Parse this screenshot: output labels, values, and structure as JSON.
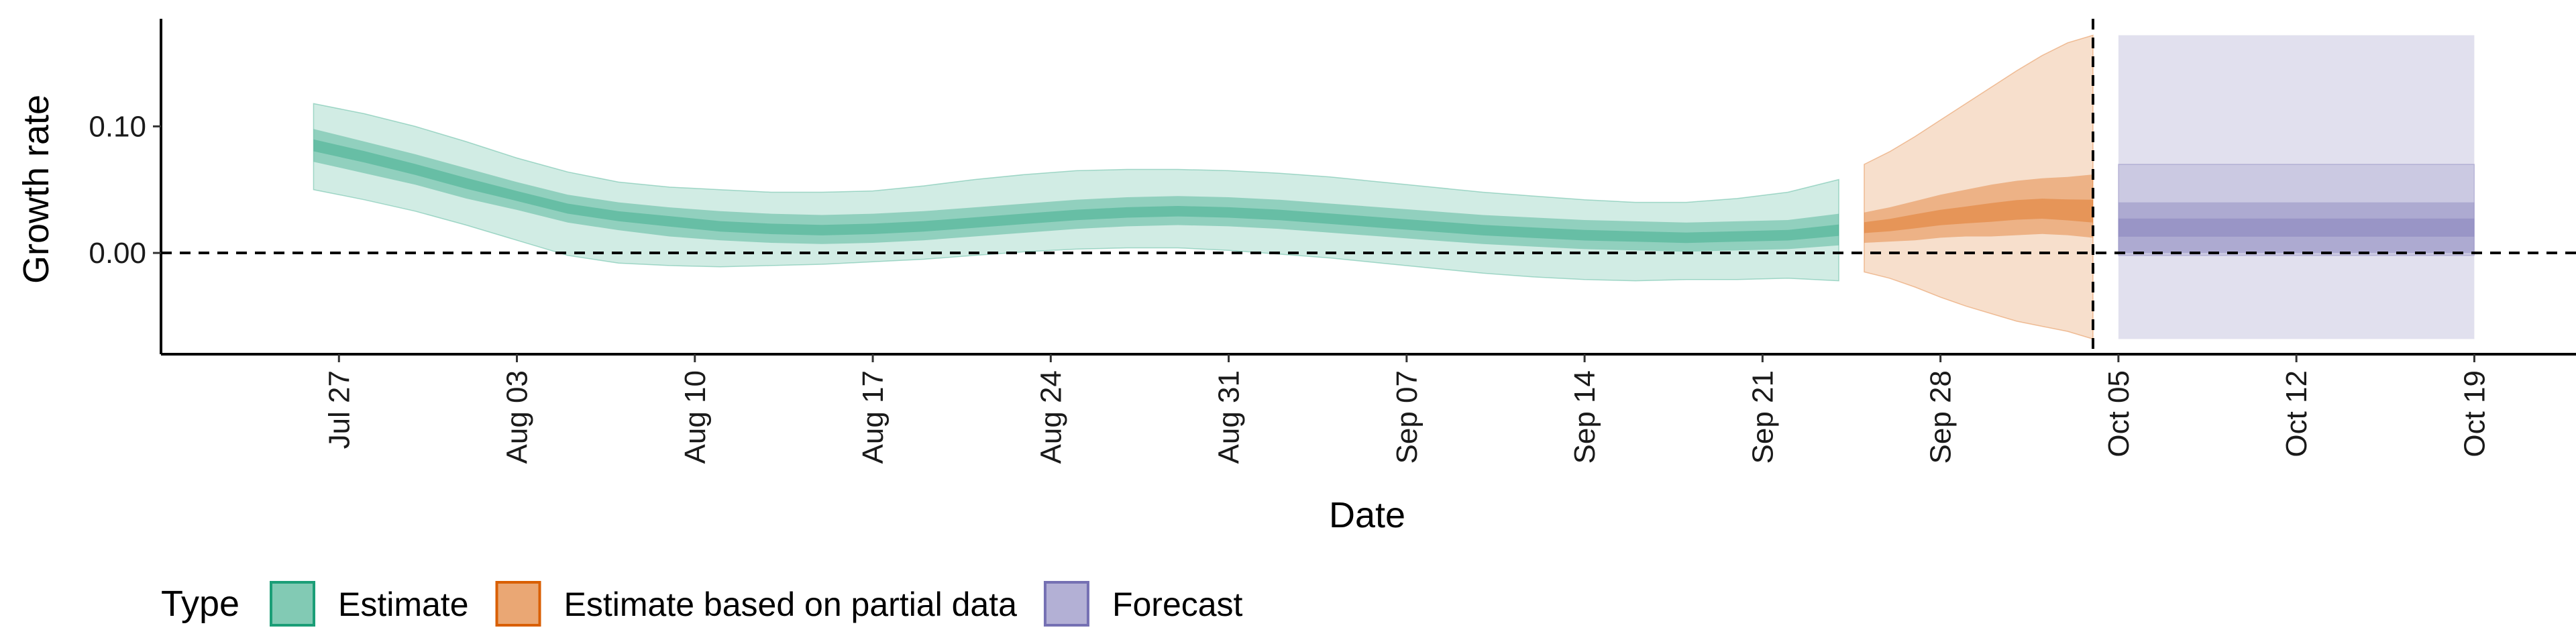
{
  "chart_data": {
    "type": "area",
    "title": "",
    "xlabel": "Date",
    "ylabel": "Growth rate",
    "xlim": [
      "2020-07-20",
      "2020-10-23"
    ],
    "ylim": [
      -0.08,
      0.185
    ],
    "x_ticks": [
      "2020-07-27",
      "2020-08-03",
      "2020-08-10",
      "2020-08-17",
      "2020-08-24",
      "2020-08-31",
      "2020-09-07",
      "2020-09-14",
      "2020-09-21",
      "2020-09-28",
      "2020-10-05",
      "2020-10-12",
      "2020-10-19"
    ],
    "x_tick_labels": [
      "Jul 27",
      "Aug 03",
      "Aug 10",
      "Aug 17",
      "Aug 24",
      "Aug 31",
      "Sep 07",
      "Sep 14",
      "Sep 21",
      "Sep 28",
      "Oct 05",
      "Oct 12",
      "Oct 19"
    ],
    "y_ticks": [
      0.0,
      0.1
    ],
    "y_tick_labels": [
      "0.00",
      "0.10"
    ],
    "reference_lines": {
      "horizontal_y": 0.0,
      "vertical_date": "2020-10-04",
      "style": "dashed"
    },
    "legend": {
      "title": "Type",
      "position": "bottom-left",
      "entries": [
        "Estimate",
        "Estimate based on partial data",
        "Forecast"
      ]
    },
    "grid": false,
    "colors": {
      "Estimate": "#1b9e77",
      "Estimate based on partial data": "#d95f02",
      "Forecast": "#7570b3"
    },
    "series": [
      {
        "name": "Estimate",
        "x": [
          "2020-07-26",
          "2020-07-28",
          "2020-07-30",
          "2020-08-01",
          "2020-08-03",
          "2020-08-05",
          "2020-08-07",
          "2020-08-09",
          "2020-08-11",
          "2020-08-13",
          "2020-08-15",
          "2020-08-17",
          "2020-08-19",
          "2020-08-21",
          "2020-08-23",
          "2020-08-25",
          "2020-08-27",
          "2020-08-29",
          "2020-08-31",
          "2020-09-02",
          "2020-09-04",
          "2020-09-06",
          "2020-09-08",
          "2020-09-10",
          "2020-09-12",
          "2020-09-14",
          "2020-09-16",
          "2020-09-18",
          "2020-09-20",
          "2020-09-22",
          "2020-09-24"
        ],
        "median": [
          0.085,
          0.076,
          0.066,
          0.055,
          0.045,
          0.035,
          0.029,
          0.025,
          0.021,
          0.019,
          0.018,
          0.019,
          0.021,
          0.024,
          0.027,
          0.03,
          0.032,
          0.033,
          0.032,
          0.03,
          0.027,
          0.024,
          0.021,
          0.018,
          0.016,
          0.014,
          0.013,
          0.012,
          0.013,
          0.014,
          0.018
        ],
        "lower_50": [
          0.072,
          0.063,
          0.054,
          0.043,
          0.034,
          0.024,
          0.018,
          0.013,
          0.01,
          0.008,
          0.007,
          0.008,
          0.01,
          0.013,
          0.016,
          0.019,
          0.021,
          0.022,
          0.021,
          0.019,
          0.016,
          0.013,
          0.01,
          0.007,
          0.005,
          0.003,
          0.002,
          0.001,
          0.002,
          0.003,
          0.006
        ],
        "upper_50": [
          0.098,
          0.088,
          0.078,
          0.067,
          0.056,
          0.046,
          0.04,
          0.036,
          0.033,
          0.031,
          0.03,
          0.031,
          0.033,
          0.036,
          0.039,
          0.042,
          0.044,
          0.045,
          0.044,
          0.042,
          0.039,
          0.036,
          0.033,
          0.03,
          0.028,
          0.026,
          0.025,
          0.024,
          0.025,
          0.026,
          0.031
        ],
        "lower_90": [
          0.05,
          0.042,
          0.033,
          0.022,
          0.01,
          -0.002,
          -0.008,
          -0.01,
          -0.011,
          -0.01,
          -0.009,
          -0.007,
          -0.005,
          -0.002,
          0.001,
          0.003,
          0.004,
          0.004,
          0.002,
          -0.001,
          -0.004,
          -0.008,
          -0.012,
          -0.016,
          -0.019,
          -0.021,
          -0.022,
          -0.021,
          -0.021,
          -0.02,
          -0.022
        ],
        "upper_90": [
          0.118,
          0.11,
          0.1,
          0.088,
          0.075,
          0.064,
          0.056,
          0.052,
          0.05,
          0.048,
          0.048,
          0.049,
          0.053,
          0.058,
          0.062,
          0.065,
          0.066,
          0.066,
          0.065,
          0.063,
          0.06,
          0.056,
          0.052,
          0.048,
          0.045,
          0.042,
          0.04,
          0.04,
          0.043,
          0.048,
          0.058
        ]
      },
      {
        "name": "Estimate based on partial data",
        "x": [
          "2020-09-25",
          "2020-09-26",
          "2020-09-27",
          "2020-09-28",
          "2020-09-29",
          "2020-09-30",
          "2020-10-01",
          "2020-10-02",
          "2020-10-03",
          "2020-10-04"
        ],
        "median": [
          0.02,
          0.022,
          0.025,
          0.028,
          0.03,
          0.032,
          0.034,
          0.035,
          0.034,
          0.033
        ],
        "lower_50": [
          0.008,
          0.009,
          0.01,
          0.012,
          0.013,
          0.013,
          0.014,
          0.015,
          0.014,
          0.012
        ],
        "upper_50": [
          0.032,
          0.036,
          0.041,
          0.046,
          0.05,
          0.054,
          0.057,
          0.059,
          0.06,
          0.062
        ],
        "lower_90": [
          -0.015,
          -0.02,
          -0.027,
          -0.035,
          -0.042,
          -0.048,
          -0.054,
          -0.058,
          -0.062,
          -0.068
        ],
        "upper_90": [
          0.07,
          0.08,
          0.092,
          0.105,
          0.118,
          0.131,
          0.144,
          0.156,
          0.166,
          0.172
        ]
      },
      {
        "name": "Forecast",
        "x": [
          "2020-10-05",
          "2020-10-19"
        ],
        "median": [
          0.02,
          0.02
        ],
        "lower_50": [
          0.0,
          0.0
        ],
        "upper_50": [
          0.04,
          0.04
        ],
        "lower_90": [
          -0.002,
          -0.002
        ],
        "upper_90": [
          0.07,
          0.07
        ],
        "lower_outer": [
          -0.068,
          -0.068
        ],
        "upper_outer": [
          0.172,
          0.172
        ]
      }
    ]
  }
}
